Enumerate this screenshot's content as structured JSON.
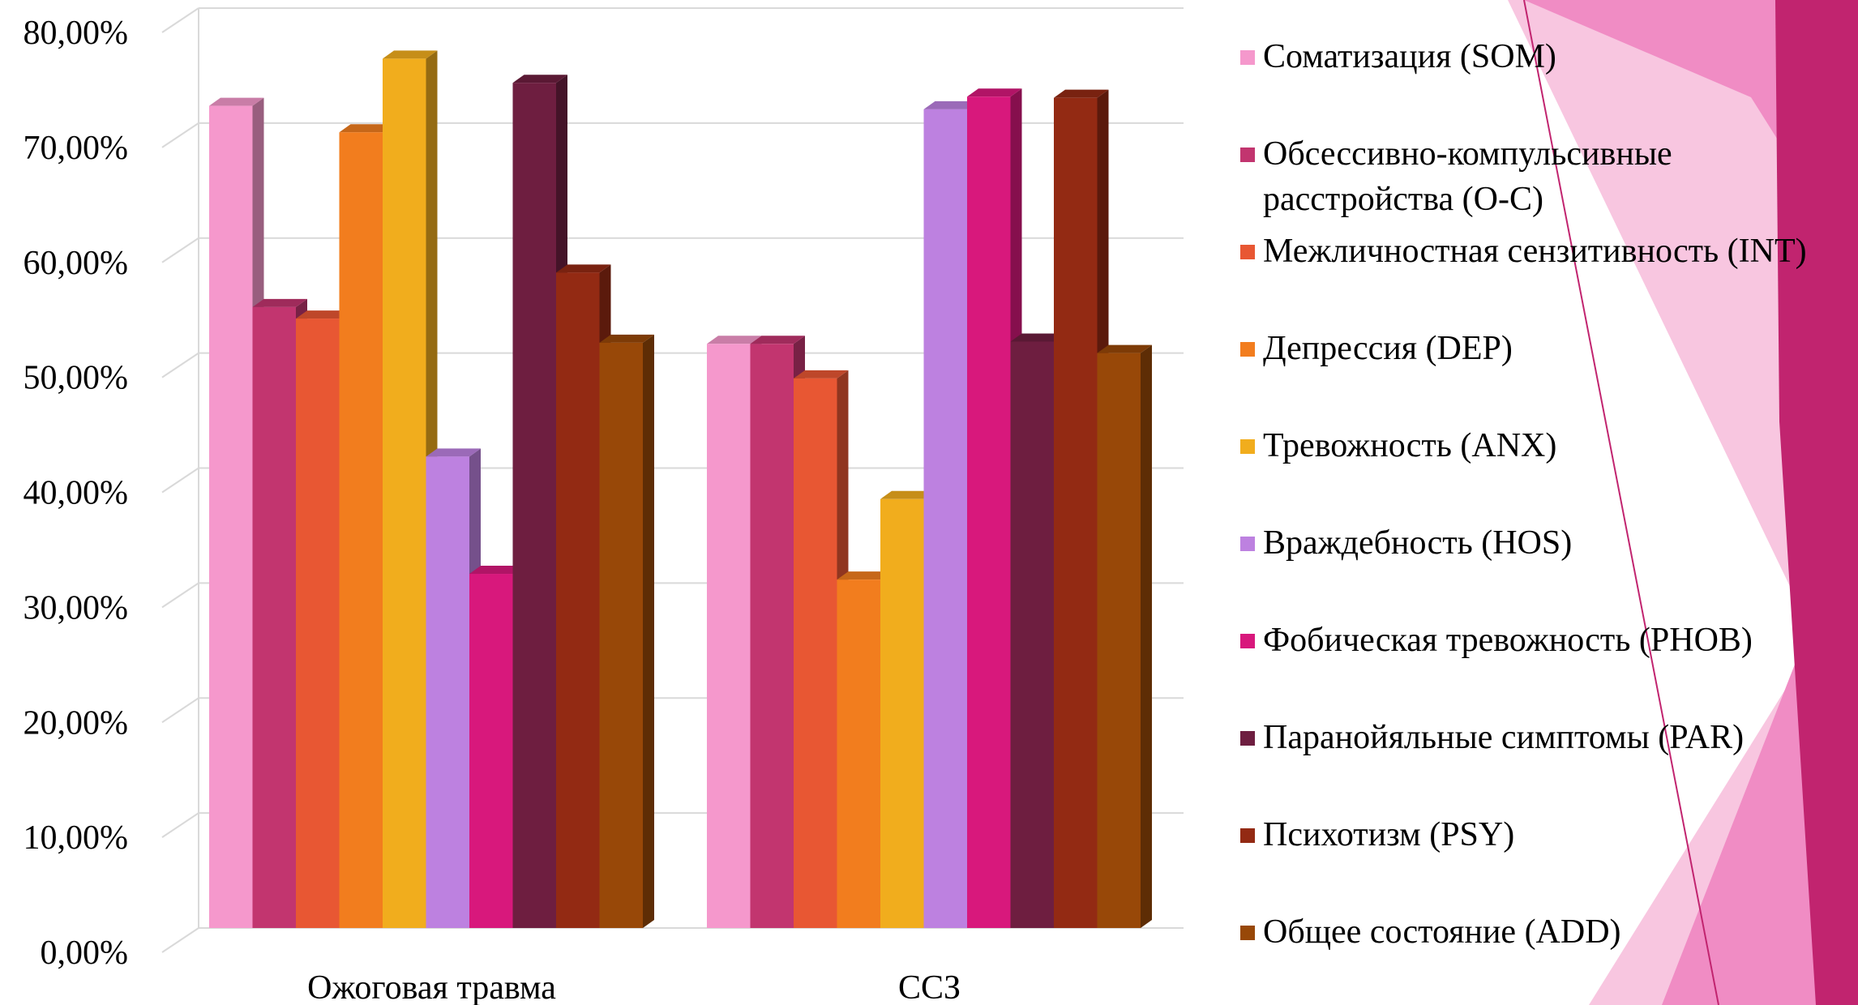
{
  "colors": {
    "SOM": "#f598cc",
    "OC": "#c2356f",
    "INT": "#e85733",
    "DEP": "#f27d1e",
    "ANX": "#f1ad1d",
    "HOS": "#bd81e0",
    "PHOB": "#d8187c",
    "PAR": "#6e1e40",
    "PSY": "#932a13",
    "ADD": "#984808",
    "decor_light": "#f8c6e0",
    "decor_mid": "#f08cc4",
    "decor_dark": "#c1246f"
  },
  "chart_data": {
    "type": "bar",
    "categories": [
      "Ожоговая травма",
      "ССЗ"
    ],
    "series": [
      {
        "name": "Соматизация (SOM)",
        "key": "SOM",
        "values": [
          71.5,
          50.8
        ]
      },
      {
        "name": "Обсессивно-компульсивные расстройства (O-C)",
        "key": "OC",
        "values": [
          54.0,
          50.8
        ]
      },
      {
        "name": "Межличностная сензитивность (INT)",
        "key": "INT",
        "values": [
          53.0,
          47.8
        ]
      },
      {
        "name": "Депрессия (DEP)",
        "key": "DEP",
        "values": [
          69.2,
          30.3
        ]
      },
      {
        "name": "Тревожность (ANX)",
        "key": "ANX",
        "values": [
          75.6,
          37.3
        ]
      },
      {
        "name": "Враждебность (HOS)",
        "key": "HOS",
        "values": [
          41.0,
          71.2
        ]
      },
      {
        "name": "Фобическая тревожность (PHOB)",
        "key": "PHOB",
        "values": [
          30.8,
          72.3
        ]
      },
      {
        "name": "Паранойяльные симптомы (PAR)",
        "key": "PAR",
        "values": [
          73.5,
          51.0
        ]
      },
      {
        "name": "Психотизм (PSY)",
        "key": "PSY",
        "values": [
          57.0,
          72.2
        ]
      },
      {
        "name": "Общее состояние (ADD)",
        "key": "ADD",
        "values": [
          50.9,
          50.0
        ]
      }
    ],
    "yticks": [
      "0,00%",
      "10,00%",
      "20,00%",
      "30,00%",
      "40,00%",
      "50,00%",
      "60,00%",
      "70,00%",
      "80,00%"
    ],
    "ylim": [
      0,
      80
    ],
    "grid": true,
    "legend_position": "right",
    "style": "3d-clustered-column"
  }
}
